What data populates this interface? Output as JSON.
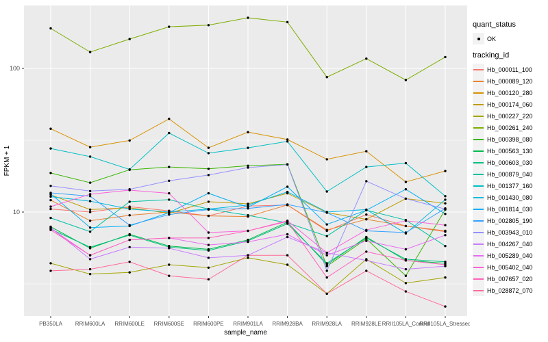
{
  "colors": {
    "panel_bg": "#EBEBEB",
    "grid_major": "#FFFFFF",
    "grid_minor": "#FFFFFF",
    "axis_text": "#4D4D4D",
    "axis_title": "#000000",
    "tick_mark": "#333333",
    "point": "#000000",
    "legend_key_bg": "#F2F2F2"
  },
  "legend": {
    "quant_title": "quant_status",
    "quant_items": [
      "OK"
    ],
    "series_title": "tracking_id"
  },
  "chart_data": {
    "type": "line",
    "title": "",
    "xlabel": "sample_name",
    "ylabel": "FPKM + 1",
    "y_scale": "log10",
    "ylim": [
      1.9,
      274
    ],
    "y_major_ticks": [
      10,
      100
    ],
    "y_major_tick_labels": [
      "10",
      "100"
    ],
    "y_minor_gridlines": [
      3.162,
      31.62
    ],
    "grid": true,
    "legend_position": "right",
    "point_shape": "filled-circle",
    "categories": [
      "PB350LA",
      "RRIM600LA",
      "RRIM600LE",
      "RRIM600SE",
      "RRIM600PE",
      "RRIM901LA",
      "RRIM928BA",
      "RRIM928LA",
      "RRIM928LE",
      "RRII105LA_Control",
      "RRII105LA_Stressed"
    ],
    "series": [
      {
        "name": "Hb_000011_100",
        "color": "#F8766D",
        "values": [
          10.5,
          10.0,
          10.9,
          10.2,
          9.4,
          11.0,
          11.2,
          7.4,
          9.6,
          8.0,
          7.3
        ]
      },
      {
        "name": "Hb_000089_120",
        "color": "#EA8331",
        "values": [
          12.1,
          8.7,
          9.5,
          10.0,
          9.4,
          9.3,
          11.2,
          7.5,
          8.9,
          8.0,
          7.4
        ]
      },
      {
        "name": "Hb_000120_280",
        "color": "#D89200",
        "values": [
          38,
          28.3,
          31.5,
          44.5,
          28,
          36,
          32,
          23.3,
          26.5,
          16.2,
          19.3
        ]
      },
      {
        "name": "Hb_000174_060",
        "color": "#C09B00",
        "values": [
          13.2,
          10.4,
          10.7,
          9.8,
          11.8,
          11.4,
          13.5,
          9.9,
          8.9,
          12.4,
          11.5
        ]
      },
      {
        "name": "Hb_000227_220",
        "color": "#A3A500",
        "values": [
          4.4,
          3.7,
          3.8,
          4.3,
          4.1,
          4.8,
          4.3,
          2.7,
          4.7,
          3.2,
          3.5
        ]
      },
      {
        "name": "Hb_000261_240",
        "color": "#7CAE00",
        "values": [
          190,
          130,
          160,
          195,
          200,
          225,
          210,
          87,
          117,
          83,
          120
        ]
      },
      {
        "name": "Hb_000398_080",
        "color": "#39B600",
        "values": [
          18.7,
          16.0,
          19.7,
          20.6,
          20.0,
          21.0,
          21.5,
          4.2,
          6.5,
          3.6,
          10.4
        ]
      },
      {
        "name": "Hb_000563_130",
        "color": "#00BB4E",
        "values": [
          7.9,
          5.6,
          7.0,
          5.8,
          5.5,
          6.4,
          8.5,
          4.3,
          6.7,
          4.6,
          4.4
        ]
      },
      {
        "name": "Hb_000603_030",
        "color": "#00BF7D",
        "values": [
          7.6,
          5.7,
          6.9,
          5.7,
          5.4,
          6.3,
          8.3,
          4.4,
          6.6,
          4.7,
          4.5
        ]
      },
      {
        "name": "Hb_000879_040",
        "color": "#00C1A3",
        "values": [
          9.1,
          7.3,
          11.8,
          12.2,
          10.5,
          9.5,
          8.4,
          6.8,
          10.3,
          8.8,
          5.8
        ]
      },
      {
        "name": "Hb_001377_160",
        "color": "#00BFC4",
        "values": [
          27.7,
          24.3,
          19.8,
          35.5,
          25.7,
          28,
          31,
          13.9,
          20.6,
          21.9,
          12.9
        ]
      },
      {
        "name": "Hb_001430_080",
        "color": "#00BAE0",
        "values": [
          12.8,
          11.9,
          10.5,
          10.0,
          10.5,
          11.2,
          13.8,
          10.0,
          10.4,
          7.1,
          12.2
        ]
      },
      {
        "name": "Hb_001814_030",
        "color": "#00B0F6",
        "values": [
          13.4,
          7.8,
          8.0,
          9.9,
          13.5,
          10.8,
          15.0,
          8.2,
          10.3,
          14.4,
          9.7
        ]
      },
      {
        "name": "Hb_002805_190",
        "color": "#35A2FF",
        "values": [
          13.6,
          12.9,
          8.1,
          9.6,
          10.4,
          10.6,
          11.3,
          9.9,
          7.4,
          7.2,
          10.6
        ]
      },
      {
        "name": "Hb_003943_010",
        "color": "#9590FF",
        "values": [
          15.2,
          14.0,
          14.4,
          16.5,
          18.1,
          20.4,
          21.4,
          3.9,
          16.4,
          12.4,
          10.5
        ]
      },
      {
        "name": "Hb_004267_040",
        "color": "#C77CFF",
        "values": [
          7.8,
          4.7,
          5.7,
          5.6,
          4.8,
          5.0,
          6.7,
          5.2,
          4.6,
          4.0,
          4.2
        ]
      },
      {
        "name": "Hb_005289_040",
        "color": "#E76BF3",
        "values": [
          7.7,
          5.0,
          6.4,
          6.6,
          5.9,
          6.2,
          7.0,
          5.0,
          6.3,
          5.5,
          6.9
        ]
      },
      {
        "name": "Hb_005402_040",
        "color": "#FA62DB",
        "values": [
          10.9,
          13.3,
          14.2,
          13.5,
          7.2,
          7.4,
          8.7,
          5.2,
          7.5,
          8.7,
          8.1
        ]
      },
      {
        "name": "Hb_007657_020",
        "color": "#FF62BC",
        "values": [
          7.5,
          5.0,
          6.4,
          6.6,
          6.6,
          7.4,
          8.6,
          3.5,
          5.3,
          4.6,
          4.3
        ]
      },
      {
        "name": "Hb_028872_070",
        "color": "#FF6A98",
        "values": [
          3.9,
          4.0,
          4.5,
          3.6,
          3.4,
          5.0,
          5.0,
          2.7,
          3.9,
          2.8,
          2.2
        ]
      }
    ]
  }
}
